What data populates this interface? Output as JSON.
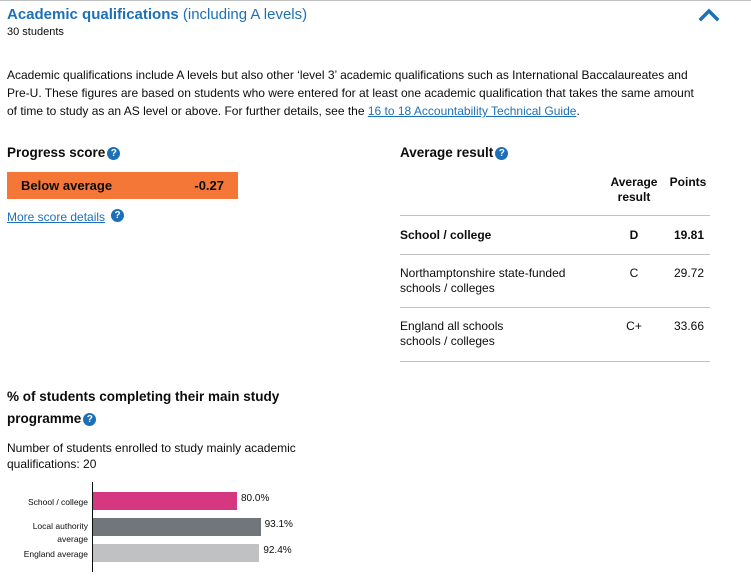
{
  "header": {
    "title": "Academic qualifications",
    "subtitle": "(including A levels)",
    "student_count": "30 students"
  },
  "intro": {
    "text": "Academic qualifications include A levels but also other ‘level 3’ academic qualifications such as International Baccalaureates and Pre-U. These figures are based on students who were entered for at least one academic qualification that takes the same amount of time to study as an AS level or above. For further details, see the ",
    "link_text": "16 to 18 Accountability Technical Guide",
    "text_end": "."
  },
  "progress": {
    "heading": "Progress score",
    "badge_label": "Below average",
    "badge_value": "-0.27",
    "badge_color": "#f47738",
    "more_link": "More score details"
  },
  "average": {
    "heading": "Average result",
    "col_result": "Average result",
    "col_points": "Points",
    "rows": [
      {
        "name": "School / college",
        "result": "D",
        "points": "19.81"
      },
      {
        "name": "Northamptonshire state-funded schools / colleges",
        "result": "C",
        "points": "29.72"
      },
      {
        "name": "England all schools schools / colleges",
        "result": "C+",
        "points": "33.66"
      }
    ]
  },
  "completion": {
    "heading": "% of students completing their main study programme",
    "enrolled_text": "Number of students enrolled to study mainly academic qualifications: 20"
  },
  "chart_data": {
    "type": "bar",
    "orientation": "horizontal",
    "categories": [
      "School / college",
      "Local authority average",
      "England average"
    ],
    "values": [
      80.0,
      93.1,
      92.4
    ],
    "value_labels": [
      "80.0%",
      "93.1%",
      "92.4%"
    ],
    "colors": [
      "#d53880",
      "#6f777b",
      "#bfc1c3"
    ],
    "xlim": [
      0,
      100
    ]
  },
  "colors": {
    "link": "#1d70b8",
    "text": "#0b0c0c",
    "divider": "#bfc1c3"
  }
}
